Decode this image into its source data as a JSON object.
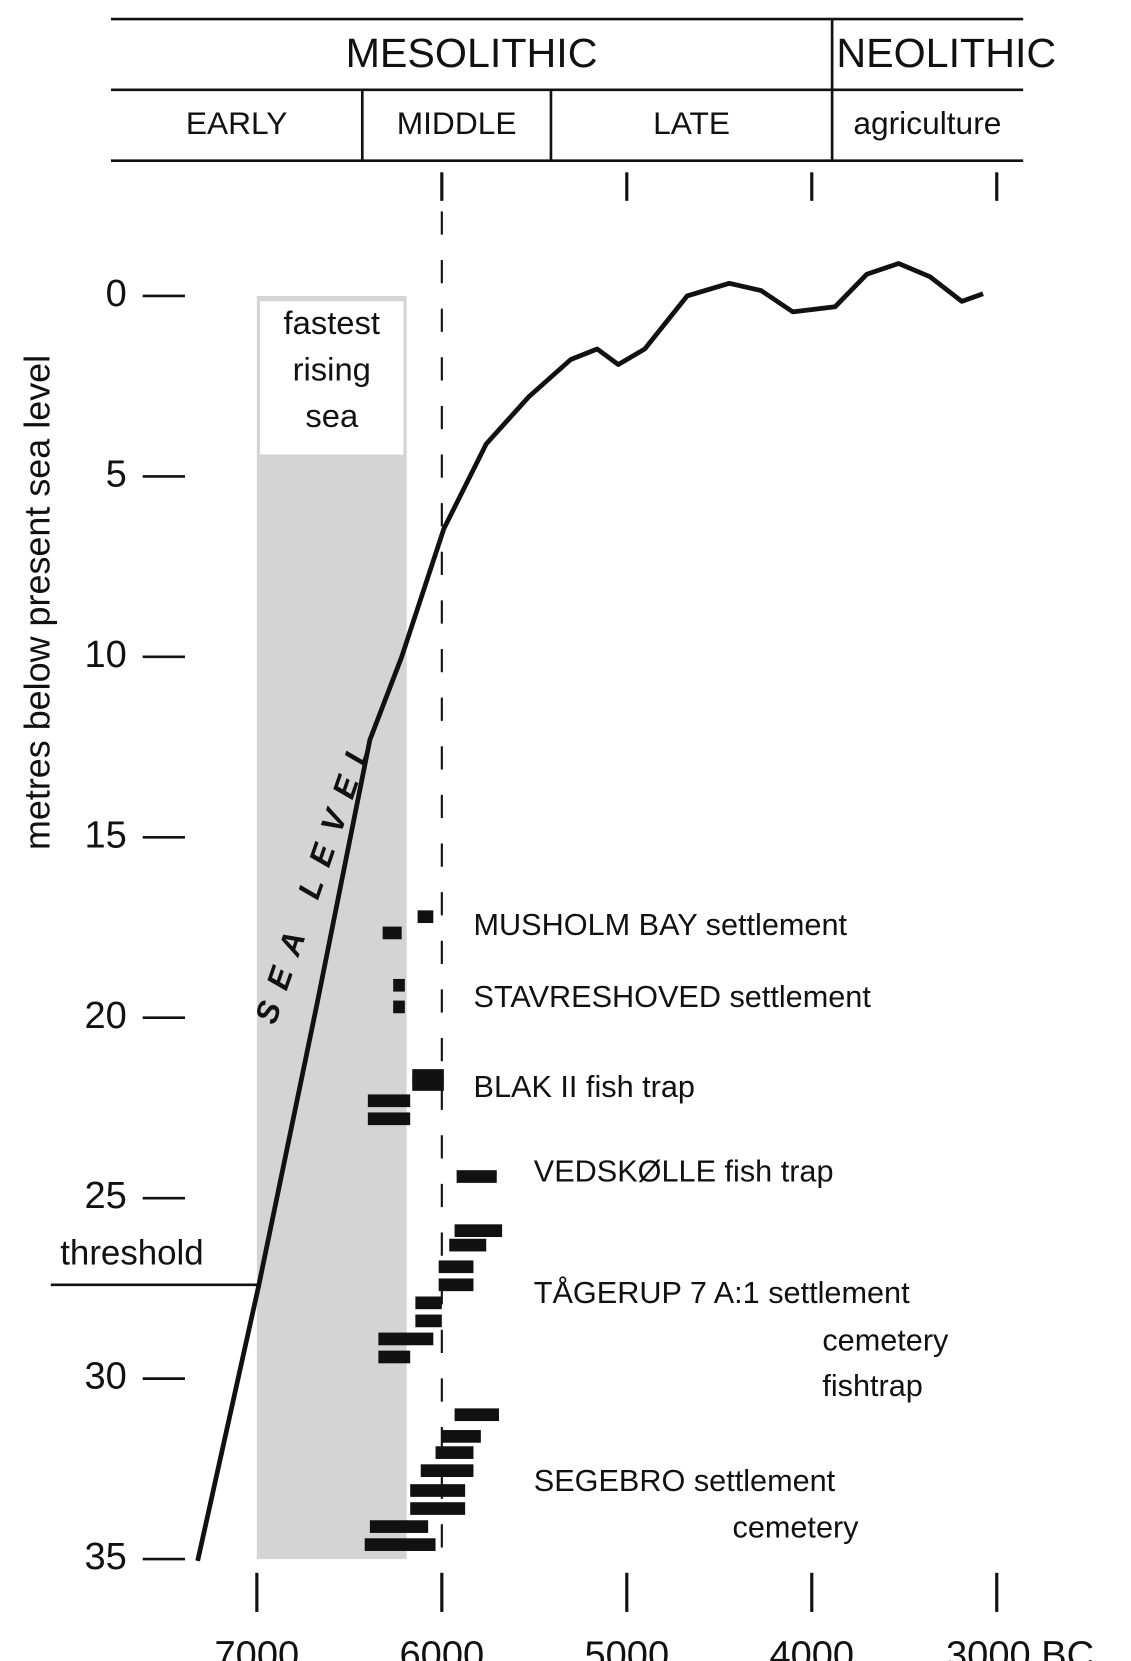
{
  "chart_data": {
    "type": "line",
    "y_label": "metres below present sea level",
    "xlim": [
      7000,
      3000
    ],
    "ylim": [
      0,
      35
    ],
    "xticks": [
      7000,
      6000,
      5000,
      4000,
      {
        "value": 3000,
        "label": "3000 BC"
      }
    ],
    "yticks": [
      0,
      5,
      10,
      15,
      20,
      25,
      30,
      35
    ],
    "periods_top": [
      {
        "label": "MESOLITHIC",
        "start": 7790,
        "end": 3890
      },
      {
        "label": "NEOLITHIC",
        "start": 3890,
        "end": 2860
      }
    ],
    "periods_bottom": [
      {
        "label": "EARLY",
        "start": 7790,
        "end": 6430
      },
      {
        "label": "MIDDLE",
        "start": 6430,
        "end": 5410
      },
      {
        "label": "LATE",
        "start": 5410,
        "end": 3890
      },
      {
        "label": "agriculture",
        "start": 3890,
        "end": 2860
      }
    ],
    "dashed_line_x": 6000,
    "shaded_region": {
      "label": [
        "fastest",
        "rising",
        "sea"
      ],
      "start": 7000,
      "end": 6190
    },
    "threshold": {
      "label": "threshold",
      "depth": 27.4
    },
    "series": [
      {
        "name": "SEA LEVEL",
        "color": "#111",
        "x": [
          7320,
          6989,
          6674,
          6389,
          6217,
          5989,
          5760,
          5531,
          5303,
          5160,
          5046,
          4903,
          4674,
          4446,
          4274,
          4103,
          3874,
          3703,
          3531,
          3360,
          3189,
          3074
        ],
        "values": [
          35.05,
          27.4,
          19.6,
          12.3,
          10.0,
          6.45,
          4.1,
          2.8,
          1.76,
          1.47,
          1.9,
          1.47,
          0,
          -0.35,
          -0.15,
          0.44,
          0.3,
          -0.6,
          -0.9,
          -0.53,
          0.15,
          -0.06
        ]
      }
    ],
    "sites": [
      {
        "lines": [
          "MUSHOLM BAY settlement"
        ],
        "ranges": [
          {
            "start": 6131,
            "end": 6046,
            "depth": 17.2
          },
          {
            "start": 6320,
            "end": 6217,
            "depth": 17.65
          }
        ]
      },
      {
        "lines": [
          "STAVRESHOVED settlement"
        ],
        "ranges": [
          {
            "start": 6263,
            "end": 6200,
            "depth": 19.1
          },
          {
            "start": 6263,
            "end": 6200,
            "depth": 19.7
          }
        ]
      },
      {
        "lines": [
          "BLAK II fish trap"
        ],
        "ranges": [
          {
            "start": 6160,
            "end": 5989,
            "depth": 21.6
          },
          {
            "start": 6160,
            "end": 5989,
            "depth": 21.85
          },
          {
            "start": 6400,
            "end": 6171,
            "depth": 22.3
          },
          {
            "start": 6400,
            "end": 6171,
            "depth": 22.8
          }
        ]
      },
      {
        "lines": [
          "VEDSKØLLE fish trap"
        ],
        "ranges": [
          {
            "start": 5920,
            "end": 5703,
            "depth": 24.4
          }
        ]
      },
      {
        "lines": [
          "TÅGERUP 7 A:1 settlement",
          "cemetery",
          "fishtrap"
        ],
        "ranges": [
          {
            "start": 5931,
            "end": 5674,
            "depth": 25.9
          },
          {
            "start": 5960,
            "end": 5760,
            "depth": 26.3
          },
          {
            "start": 6017,
            "end": 5829,
            "depth": 26.9
          },
          {
            "start": 6017,
            "end": 5829,
            "depth": 27.4
          },
          {
            "start": 6143,
            "end": 6000,
            "depth": 27.9
          },
          {
            "start": 6143,
            "end": 6000,
            "depth": 28.4
          },
          {
            "start": 6343,
            "end": 6046,
            "depth": 28.9
          },
          {
            "start": 6343,
            "end": 6171,
            "depth": 29.4
          }
        ]
      },
      {
        "lines": [
          "SEGEBRO settlement",
          "cemetery"
        ],
        "ranges": [
          {
            "start": 5931,
            "end": 5691,
            "depth": 31.0
          },
          {
            "start": 5998,
            "end": 5789,
            "depth": 31.6
          },
          {
            "start": 6034,
            "end": 5829,
            "depth": 32.05
          },
          {
            "start": 6114,
            "end": 5829,
            "depth": 32.55
          },
          {
            "start": 6171,
            "end": 5874,
            "depth": 33.1
          },
          {
            "start": 6171,
            "end": 5874,
            "depth": 33.6
          },
          {
            "start": 6389,
            "end": 6074,
            "depth": 34.1
          },
          {
            "start": 6417,
            "end": 6034,
            "depth": 34.6
          }
        ]
      }
    ]
  }
}
